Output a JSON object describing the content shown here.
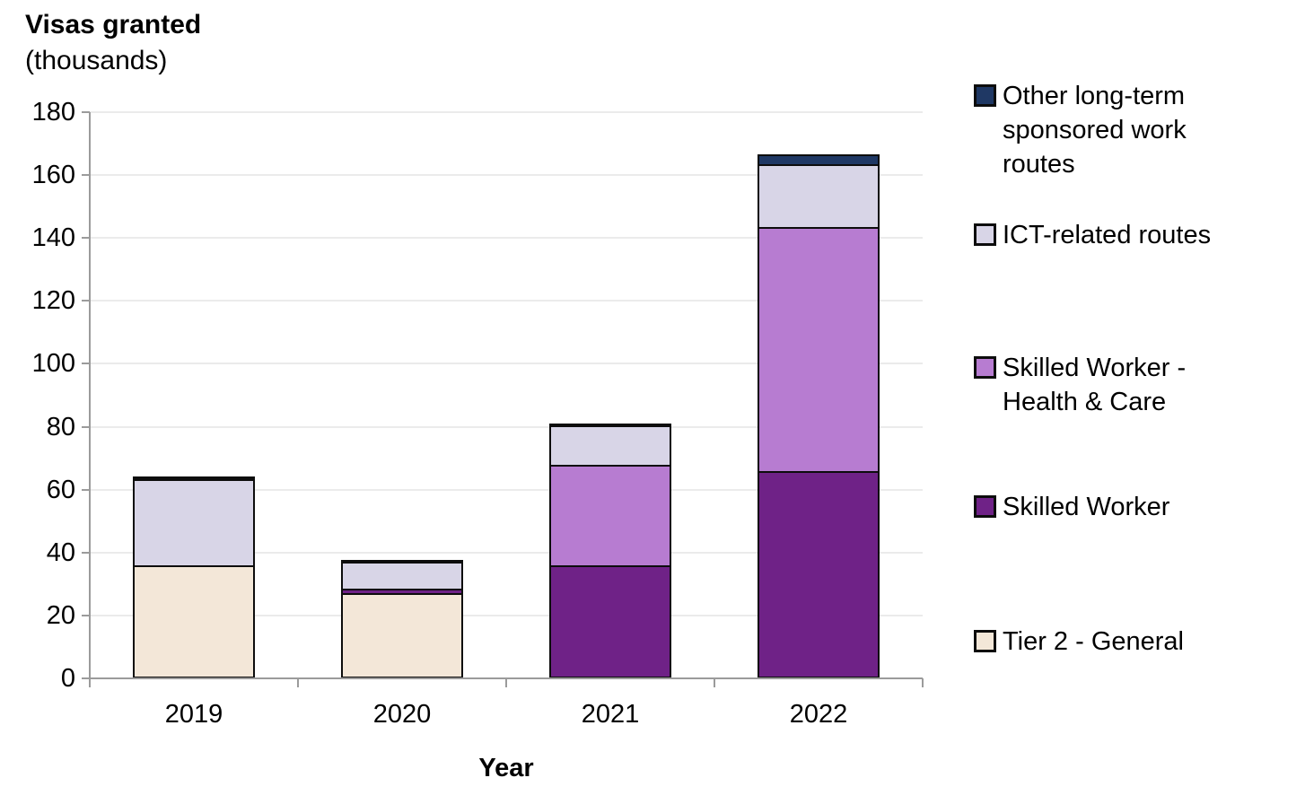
{
  "title": "Visas granted",
  "subtitle": "(thousands)",
  "x_axis_title": "Year",
  "colors": {
    "tier2_general": "#F3E7D8",
    "skilled_worker": "#6F2287",
    "skilled_worker_health_care": "#B77CD1",
    "ict_related": "#D8D5E7",
    "other_long_term": "#1F3864",
    "axis": "#9b9b9b",
    "gridline": "#ebebeb",
    "segment_border": "#0d0d0d"
  },
  "chart_data": {
    "type": "bar",
    "stacked": true,
    "title": "Visas granted (thousands)",
    "xlabel": "Year",
    "ylabel": "Visas granted (thousands)",
    "categories": [
      "2019",
      "2020",
      "2021",
      "2022"
    ],
    "series": [
      {
        "name": "Tier 2 - General",
        "color": "#F3E7D8",
        "values": [
          36,
          27,
          0,
          0
        ]
      },
      {
        "name": "Skilled Worker",
        "color": "#6F2287",
        "values": [
          0,
          1.5,
          36,
          66
        ]
      },
      {
        "name": "Skilled Worker - Health & Care",
        "color": "#B77CD1",
        "values": [
          0,
          0,
          32,
          77.5
        ]
      },
      {
        "name": "ICT-related routes",
        "color": "#D8D5E7",
        "values": [
          27.5,
          8.5,
          12.5,
          20
        ]
      },
      {
        "name": "Other long-term sponsored work routes",
        "color": "#1F3864",
        "values": [
          0.5,
          0.5,
          0.5,
          3
        ]
      }
    ],
    "totals": [
      64,
      37.5,
      81,
      166.5
    ],
    "ylim": [
      0,
      180
    ],
    "y_ticks": [
      0,
      20,
      40,
      60,
      80,
      100,
      120,
      140,
      160,
      180
    ],
    "grid": true,
    "legend_position": "right",
    "legend_order_top_to_bottom": [
      "Other long-term sponsored work routes",
      "ICT-related routes",
      "Skilled Worker - Health & Care",
      "Skilled Worker",
      "Tier 2 - General"
    ]
  },
  "legend": {
    "items": [
      {
        "label": "Other long-term sponsored work routes",
        "lines": [
          "Other long-term",
          "sponsored work",
          "routes"
        ],
        "color": "#1F3864"
      },
      {
        "label": "ICT-related routes",
        "lines": [
          "ICT-related routes"
        ],
        "color": "#D8D5E7"
      },
      {
        "label": "Skilled Worker - Health & Care",
        "lines": [
          "Skilled Worker -",
          "Health & Care"
        ],
        "color": "#B77CD1"
      },
      {
        "label": "Skilled Worker",
        "lines": [
          "Skilled Worker"
        ],
        "color": "#6F2287"
      },
      {
        "label": "Tier 2 - General",
        "lines": [
          "Tier 2 - General"
        ],
        "color": "#F3E7D8"
      }
    ]
  }
}
